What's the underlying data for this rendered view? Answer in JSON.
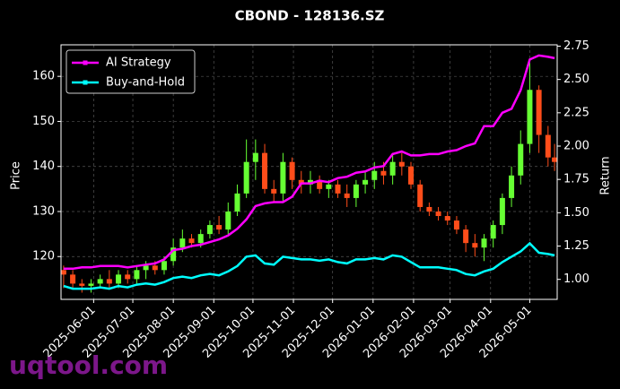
{
  "chart_data": {
    "type": "candlestick",
    "title": "CBOND - 128136.SZ",
    "ylabel": "Price",
    "y2label": "Return",
    "watermark": "uqtool.com",
    "x": [
      "2025-05-09",
      "2025-05-16",
      "2025-05-23",
      "2025-05-30",
      "2025-06-06",
      "2025-06-13",
      "2025-06-20",
      "2025-06-27",
      "2025-07-04",
      "2025-07-11",
      "2025-07-18",
      "2025-07-25",
      "2025-08-01",
      "2025-08-08",
      "2025-08-15",
      "2025-08-22",
      "2025-08-29",
      "2025-09-05",
      "2025-09-12",
      "2025-09-19",
      "2025-09-26",
      "2025-10-03",
      "2025-10-10",
      "2025-10-17",
      "2025-10-24",
      "2025-10-31",
      "2025-11-07",
      "2025-11-14",
      "2025-11-21",
      "2025-11-28",
      "2025-12-05",
      "2025-12-12",
      "2025-12-19",
      "2025-12-26",
      "2026-01-02",
      "2026-01-09",
      "2026-01-16",
      "2026-01-23",
      "2026-01-30",
      "2026-02-06",
      "2026-02-13",
      "2026-02-20",
      "2026-02-27",
      "2026-03-06",
      "2026-03-13",
      "2026-03-20",
      "2026-03-27",
      "2026-04-03",
      "2026-04-10",
      "2026-04-17",
      "2026-04-24",
      "2026-05-01",
      "2026-05-08",
      "2026-05-15",
      "2026-05-20"
    ],
    "open": [
      117,
      116,
      114,
      113.5,
      114,
      115,
      114,
      116,
      115,
      117,
      118,
      117,
      119,
      122,
      124,
      123,
      125,
      127,
      126,
      130,
      134,
      141,
      143,
      135,
      134,
      141,
      137,
      136,
      137,
      135,
      136,
      134,
      133,
      136,
      137,
      139,
      138,
      141,
      140,
      136,
      131,
      130,
      129,
      128,
      126,
      123,
      122,
      124,
      127,
      133,
      138,
      145,
      157,
      147,
      142
    ],
    "high": [
      118,
      117,
      115,
      115,
      116,
      117,
      117,
      117,
      118,
      119,
      119,
      120,
      124,
      126,
      125,
      126,
      128,
      129,
      132,
      136,
      146,
      146,
      145,
      137,
      143,
      142,
      139,
      139,
      138,
      137,
      137,
      136,
      137,
      139,
      141,
      141,
      143,
      143,
      141,
      137,
      132,
      131,
      130,
      129,
      127,
      125,
      125,
      128,
      134,
      140,
      148,
      163,
      158,
      149,
      145
    ],
    "low": [
      113,
      113,
      112,
      112,
      113,
      113,
      113,
      114,
      114,
      115,
      116,
      116,
      118,
      121,
      122,
      122,
      124,
      125,
      125,
      129,
      133,
      137,
      134,
      132,
      132,
      135,
      134,
      134,
      134,
      133,
      133,
      131,
      131,
      134,
      135,
      136,
      136,
      138,
      135,
      130,
      129,
      128,
      127,
      125,
      121,
      120,
      119,
      122,
      125,
      131,
      136,
      143,
      143,
      140,
      139
    ],
    "close": [
      116,
      114,
      113.5,
      114,
      115,
      114,
      116,
      115,
      117,
      118,
      117,
      119,
      122,
      124,
      123,
      125,
      127,
      126,
      130,
      134,
      141,
      143,
      135,
      134,
      141,
      137,
      136,
      137,
      135,
      136,
      134,
      133,
      136,
      137,
      139,
      138,
      141,
      140,
      136,
      131,
      130,
      129,
      128,
      126,
      123,
      122,
      124,
      127,
      133,
      138,
      145,
      157,
      147,
      142,
      141
    ],
    "up_color": "#66ff33",
    "down_color": "#ff4d1a",
    "series": [
      {
        "name": "AI Strategy",
        "color": "#ff00ff",
        "axis": "y2",
        "values": [
          1.08,
          1.08,
          1.09,
          1.09,
          1.1,
          1.1,
          1.1,
          1.09,
          1.1,
          1.11,
          1.12,
          1.15,
          1.22,
          1.23,
          1.25,
          1.26,
          1.28,
          1.3,
          1.33,
          1.38,
          1.45,
          1.55,
          1.57,
          1.58,
          1.58,
          1.62,
          1.72,
          1.72,
          1.74,
          1.73,
          1.76,
          1.77,
          1.8,
          1.81,
          1.84,
          1.85,
          1.94,
          1.96,
          1.93,
          1.93,
          1.94,
          1.94,
          1.96,
          1.97,
          2.0,
          2.02,
          2.15,
          2.15,
          2.25,
          2.28,
          2.42,
          2.65,
          2.68,
          2.67,
          2.66
        ]
      },
      {
        "name": "Buy-and-Hold",
        "color": "#00ffff",
        "axis": "y2",
        "values": [
          0.95,
          0.93,
          0.93,
          0.93,
          0.94,
          0.93,
          0.95,
          0.94,
          0.96,
          0.97,
          0.96,
          0.98,
          1.01,
          1.02,
          1.01,
          1.03,
          1.04,
          1.03,
          1.06,
          1.1,
          1.17,
          1.18,
          1.12,
          1.11,
          1.17,
          1.16,
          1.15,
          1.15,
          1.14,
          1.15,
          1.13,
          1.12,
          1.15,
          1.15,
          1.16,
          1.15,
          1.18,
          1.17,
          1.13,
          1.09,
          1.09,
          1.09,
          1.08,
          1.07,
          1.04,
          1.03,
          1.06,
          1.08,
          1.13,
          1.17,
          1.21,
          1.27,
          1.2,
          1.19,
          1.18
        ]
      }
    ],
    "xlim": [
      "2025-05-07",
      "2026-05-22"
    ],
    "xticks": [
      "2025-06-01",
      "2025-07-01",
      "2025-08-01",
      "2025-09-01",
      "2025-10-01",
      "2025-11-01",
      "2025-12-01",
      "2026-01-01",
      "2026-02-01",
      "2026-03-01",
      "2026-04-01",
      "2026-05-01"
    ],
    "ylim": [
      110.5,
      167
    ],
    "yticks": [
      120,
      130,
      140,
      150,
      160
    ],
    "y2lim": [
      0.85,
      2.76
    ],
    "y2ticks": [
      {
        "value": 1,
        "label": "1.00"
      },
      1.25,
      {
        "value": 1.5,
        "label": "1.50"
      },
      1.75,
      {
        "value": 2,
        "label": "2.00"
      },
      2.25,
      {
        "value": 2.5,
        "label": "2.50"
      },
      2.75
    ],
    "grid": true,
    "legend": "upper left"
  }
}
